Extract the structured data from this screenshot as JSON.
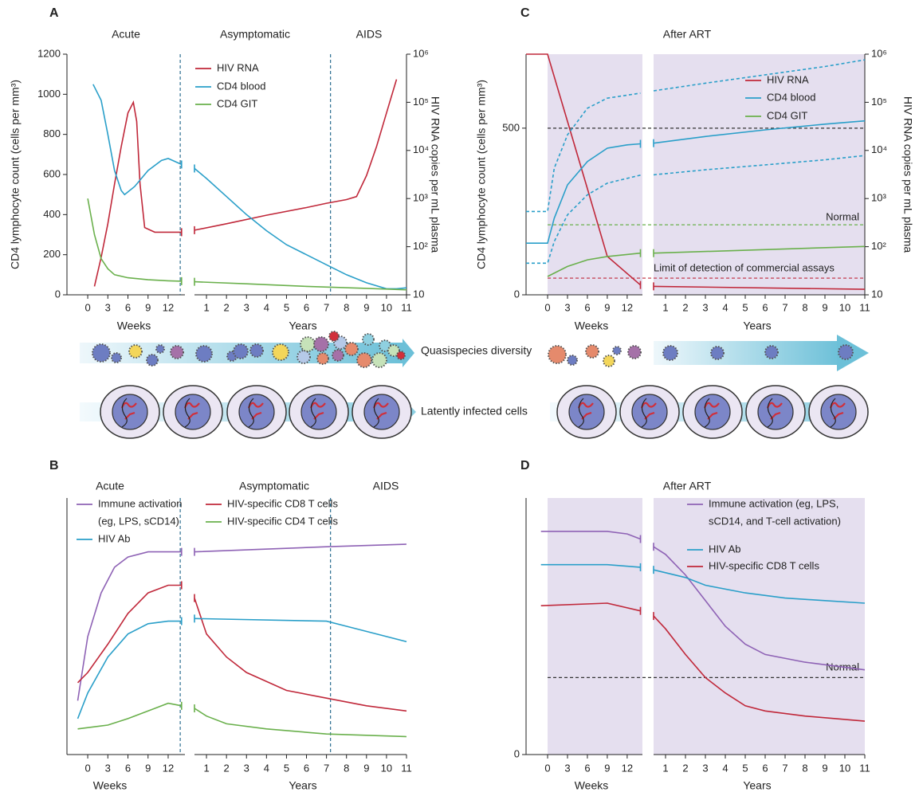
{
  "chart_data": [
    {
      "type": "line",
      "panel": "A",
      "phases": [
        "Acute",
        "Asymptomatic",
        "AIDS"
      ],
      "ylabel": "CD4 lymphocyte count (cells per mm³)",
      "y2label": "HIV RNA copies per mL plasma",
      "ylim": [
        0,
        1200
      ],
      "yticks": [
        0,
        200,
        400,
        600,
        800,
        1000,
        1200
      ],
      "y2lim": [
        10,
        1000000
      ],
      "y2_scale": "log",
      "y2ticks": [
        10,
        {
          "value": 100,
          "label": "10²"
        },
        {
          "value": 1000,
          "label": "10³"
        },
        {
          "value": 10000,
          "label": "10⁴"
        },
        {
          "value": 100000,
          "label": "10⁵"
        },
        {
          "value": 1000000,
          "label": "10⁶"
        }
      ],
      "x_axes": [
        {
          "xlabel": "Weeks",
          "xlim": [
            -3.1,
            14.5
          ],
          "xticks": [
            0,
            3,
            6,
            9,
            12
          ],
          "divider": 13.8
        },
        {
          "xlabel": "Years",
          "xlim": [
            0.4,
            11
          ],
          "xticks": [
            1,
            2,
            3,
            4,
            5,
            6,
            7,
            8,
            9,
            10,
            11
          ],
          "divider": 7.2
        }
      ],
      "series": [
        {
          "name": "HIV RNA",
          "color": "#c0283a",
          "axis": "y2",
          "segments": [
            {
              "x": [
                1,
                2,
                3,
                4,
                5,
                6,
                6.8,
                7.3,
                7.8,
                8.5,
                10,
                12,
                14
              ],
              "values": [
                15,
                60,
                300,
                2000,
                12000,
                60000,
                100000,
                40000,
                2000,
                250,
                200,
                200,
                200
              ]
            },
            {
              "x": [
                0.4,
                2,
                4,
                6,
                7,
                8,
                8.5,
                9,
                9.5,
                10,
                10.5
              ],
              "values": [
                220,
                300,
                450,
                650,
                800,
                950,
                1100,
                3000,
                12000,
                60000,
                300000
              ]
            }
          ]
        },
        {
          "name": "CD4 blood",
          "color": "#2a9fc9",
          "segments": [
            {
              "x": [
                0.8,
                2,
                3,
                4,
                5,
                5.5,
                7,
                9,
                11,
                12,
                14
              ],
              "values": [
                1050,
                970,
                800,
                620,
                520,
                500,
                540,
                620,
                670,
                680,
                650
              ]
            },
            {
              "x": [
                0.4,
                1,
                2,
                3,
                4,
                5,
                6,
                7,
                8,
                9,
                10,
                10.5,
                11
              ],
              "values": [
                630,
                580,
                490,
                400,
                320,
                250,
                200,
                150,
                100,
                60,
                30,
                30,
                35
              ]
            }
          ]
        },
        {
          "name": "CD4 GIT",
          "color": "#6ab04c",
          "segments": [
            {
              "x": [
                0,
                1,
                2,
                3,
                4,
                6,
                9,
                12,
                14
              ],
              "values": [
                480,
                300,
                180,
                130,
                100,
                85,
                75,
                70,
                68
              ]
            },
            {
              "x": [
                0.4,
                3,
                6,
                9,
                11
              ],
              "values": [
                65,
                55,
                42,
                32,
                25
              ]
            }
          ]
        }
      ]
    },
    {
      "type": "line",
      "panel": "B",
      "phases": [
        "Acute",
        "Asymptomatic",
        "AIDS"
      ],
      "ylim": [
        0,
        100
      ],
      "x_axes": [
        {
          "xlabel": "Weeks",
          "xlim": [
            -3.1,
            14.5
          ],
          "xticks": [
            0,
            3,
            6,
            9,
            12
          ],
          "divider": 13.8
        },
        {
          "xlabel": "Years",
          "xlim": [
            0.4,
            11
          ],
          "xticks": [
            1,
            2,
            3,
            4,
            5,
            6,
            7,
            8,
            9,
            10,
            11
          ],
          "divider": 7.2
        }
      ],
      "series": [
        {
          "name": [
            "Immune activation",
            "(eg, LPS, sCD14)"
          ],
          "color": "#8e62b5",
          "segments": [
            {
              "x": [
                -1.5,
                0,
                2,
                4,
                6,
                9,
                12,
                14
              ],
              "values": [
                21,
                46,
                63,
                73,
                77,
                79,
                79,
                79
              ]
            },
            {
              "x": [
                0.4,
                7,
                11
              ],
              "values": [
                79,
                81,
                82
              ]
            }
          ]
        },
        {
          "name": "HIV-specific CD8 T cells",
          "color": "#c0283a",
          "segments": [
            {
              "x": [
                -1.5,
                0,
                3,
                6,
                9,
                12,
                14
              ],
              "values": [
                28,
                32,
                43,
                55,
                63,
                66,
                66
              ]
            },
            {
              "x": [
                0.4,
                1,
                2,
                3,
                5,
                7,
                9,
                11
              ],
              "values": [
                61,
                47,
                38,
                32,
                25,
                22,
                19,
                17
              ]
            }
          ]
        },
        {
          "name": "HIV Ab",
          "color": "#2a9fc9",
          "segments": [
            {
              "x": [
                -1.5,
                0,
                3,
                6,
                9,
                12,
                14
              ],
              "values": [
                14,
                24,
                38,
                47,
                51,
                52,
                52
              ]
            },
            {
              "x": [
                0.4,
                7,
                8,
                11
              ],
              "values": [
                53,
                52,
                50,
                44
              ]
            }
          ]
        },
        {
          "name": "HIV-specific CD4 T cells",
          "color": "#6ab04c",
          "segments": [
            {
              "x": [
                -1.5,
                3,
                6,
                9,
                12,
                14
              ],
              "values": [
                10,
                11.5,
                14,
                17,
                20,
                19
              ]
            },
            {
              "x": [
                0.4,
                1,
                2,
                4,
                7,
                11
              ],
              "values": [
                18,
                15,
                12,
                10,
                8,
                7
              ]
            }
          ]
        }
      ]
    },
    {
      "type": "line",
      "panel": "C",
      "phases": [
        "After ART"
      ],
      "ylabel": "CD4 lymphocyte count (cells per mm³)",
      "y2label": "HIV RNA copies per mL plasma",
      "ylim": [
        0,
        722
      ],
      "yticks": [
        0,
        500
      ],
      "y2lim": [
        10,
        1000000
      ],
      "y2_scale": "log",
      "y2ticks": [
        10,
        {
          "value": 100,
          "label": "10²"
        },
        {
          "value": 1000,
          "label": "10³"
        },
        {
          "value": 10000,
          "label": "10⁴"
        },
        {
          "value": 100000,
          "label": "10⁵"
        },
        {
          "value": 1000000,
          "label": "10⁶"
        }
      ],
      "x_axes": [
        {
          "xlabel": "Weeks",
          "xlim": [
            -3.25,
            14.3
          ],
          "xticks": [
            0,
            3,
            6,
            9,
            12
          ],
          "shade": [
            0,
            14.3
          ]
        },
        {
          "xlabel": "Years",
          "xlim": [
            0.4,
            11
          ],
          "xticks": [
            1,
            2,
            3,
            4,
            5,
            6,
            7,
            8,
            9,
            10,
            11
          ],
          "shade": [
            0.4,
            11
          ]
        }
      ],
      "reference_lines": [
        {
          "value": 500,
          "color": "#333333"
        },
        {
          "value": 210,
          "color": "#6ab04c",
          "label": "Normal"
        },
        {
          "value": 50,
          "color": "#c0283a",
          "label": "Limit of detection of commercial assays"
        }
      ],
      "series": [
        {
          "name": "HIV RNA",
          "color": "#c0283a",
          "axis": "y2",
          "segments": [
            {
              "x": [
                -3.25,
                0,
                3,
                6,
                9,
                14
              ],
              "values": [
                1000000,
                1000000,
                40000,
                1600,
                63,
                16
              ]
            },
            {
              "x": [
                0.4,
                11
              ],
              "values": [
                15,
                13
              ]
            }
          ]
        },
        {
          "name": "CD4 blood",
          "color": "#2a9fc9",
          "segments": [
            {
              "x": [
                -3.25,
                0,
                1,
                3,
                6,
                9,
                12,
                14
              ],
              "values": [
                155,
                155,
                230,
                330,
                400,
                440,
                450,
                453
              ]
            },
            {
              "x": [
                0.4,
                3,
                6,
                9,
                11
              ],
              "values": [
                455,
                475,
                495,
                512,
                522
              ]
            }
          ]
        },
        {
          "name": "CD4 GIT",
          "color": "#6ab04c",
          "segments": [
            {
              "x": [
                0,
                3,
                6,
                9,
                14
              ],
              "values": [
                55,
                85,
                105,
                115,
                125
              ]
            },
            {
              "x": [
                0.4,
                11
              ],
              "values": [
                125,
                145
              ]
            }
          ]
        },
        {
          "color": "#2a9fc9",
          "dashed": true,
          "segments": [
            {
              "x": [
                -3.25,
                0,
                1,
                3,
                6,
                9,
                14
              ],
              "values": [
                250,
                250,
                380,
                480,
                560,
                590,
                605
              ]
            },
            {
              "x": [
                0.4,
                3,
                6,
                9,
                11
              ],
              "values": [
                612,
                635,
                660,
                685,
                705
              ]
            }
          ]
        },
        {
          "color": "#2a9fc9",
          "dashed": true,
          "segments": [
            {
              "x": [
                -3.25,
                0,
                1,
                3,
                6,
                9,
                14
              ],
              "values": [
                95,
                95,
                160,
                240,
                300,
                335,
                359
              ]
            },
            {
              "x": [
                0.4,
                3,
                6,
                9,
                11
              ],
              "values": [
                360,
                375,
                390,
                405,
                418
              ]
            }
          ]
        }
      ]
    },
    {
      "type": "line",
      "panel": "D",
      "phases": [
        "After ART"
      ],
      "ylim": [
        0,
        100
      ],
      "yticks": [
        0
      ],
      "x_axes": [
        {
          "xlabel": "Weeks",
          "xlim": [
            -3.25,
            14.3
          ],
          "xticks": [
            0,
            3,
            6,
            9,
            12
          ],
          "shade": [
            0,
            14.3
          ]
        },
        {
          "xlabel": "Years",
          "xlim": [
            0.4,
            11
          ],
          "xticks": [
            1,
            2,
            3,
            4,
            5,
            6,
            7,
            8,
            9,
            10,
            11
          ],
          "shade": [
            0.4,
            11
          ]
        }
      ],
      "reference_lines": [
        {
          "value": 30,
          "color": "#333333",
          "label": "Normal"
        }
      ],
      "series": [
        {
          "name": [
            "Immune activation (eg, LPS,",
            "sCD14, and T-cell activation)"
          ],
          "color": "#8e62b5",
          "segments": [
            {
              "x": [
                -1,
                9,
                12,
                14
              ],
              "values": [
                87,
                87,
                86,
                84
              ]
            },
            {
              "x": [
                0.4,
                1,
                2,
                3,
                4,
                5,
                6,
                8,
                11
              ],
              "values": [
                81,
                78,
                70,
                60,
                50,
                43,
                39,
                36,
                33
              ]
            }
          ]
        },
        {
          "name": "HIV Ab",
          "color": "#2a9fc9",
          "segments": [
            {
              "x": [
                -1,
                9,
                14
              ],
              "values": [
                74,
                74,
                73
              ]
            },
            {
              "x": [
                0.4,
                2,
                3,
                5,
                7,
                9,
                11
              ],
              "values": [
                72,
                69,
                66,
                63,
                61,
                60,
                59
              ]
            }
          ]
        },
        {
          "name": "HIV-specific CD8 T cells",
          "color": "#c0283a",
          "segments": [
            {
              "x": [
                -1,
                9,
                14
              ],
              "values": [
                58,
                59,
                56
              ]
            },
            {
              "x": [
                0.4,
                1,
                2,
                3,
                4,
                5,
                6,
                8,
                11
              ],
              "values": [
                54,
                49,
                39,
                30,
                24,
                19,
                17,
                15,
                13
              ]
            }
          ]
        }
      ]
    }
  ],
  "illustration": {
    "quasispecies": "Quasispecies diversity",
    "latent": "Latently infected cells"
  }
}
